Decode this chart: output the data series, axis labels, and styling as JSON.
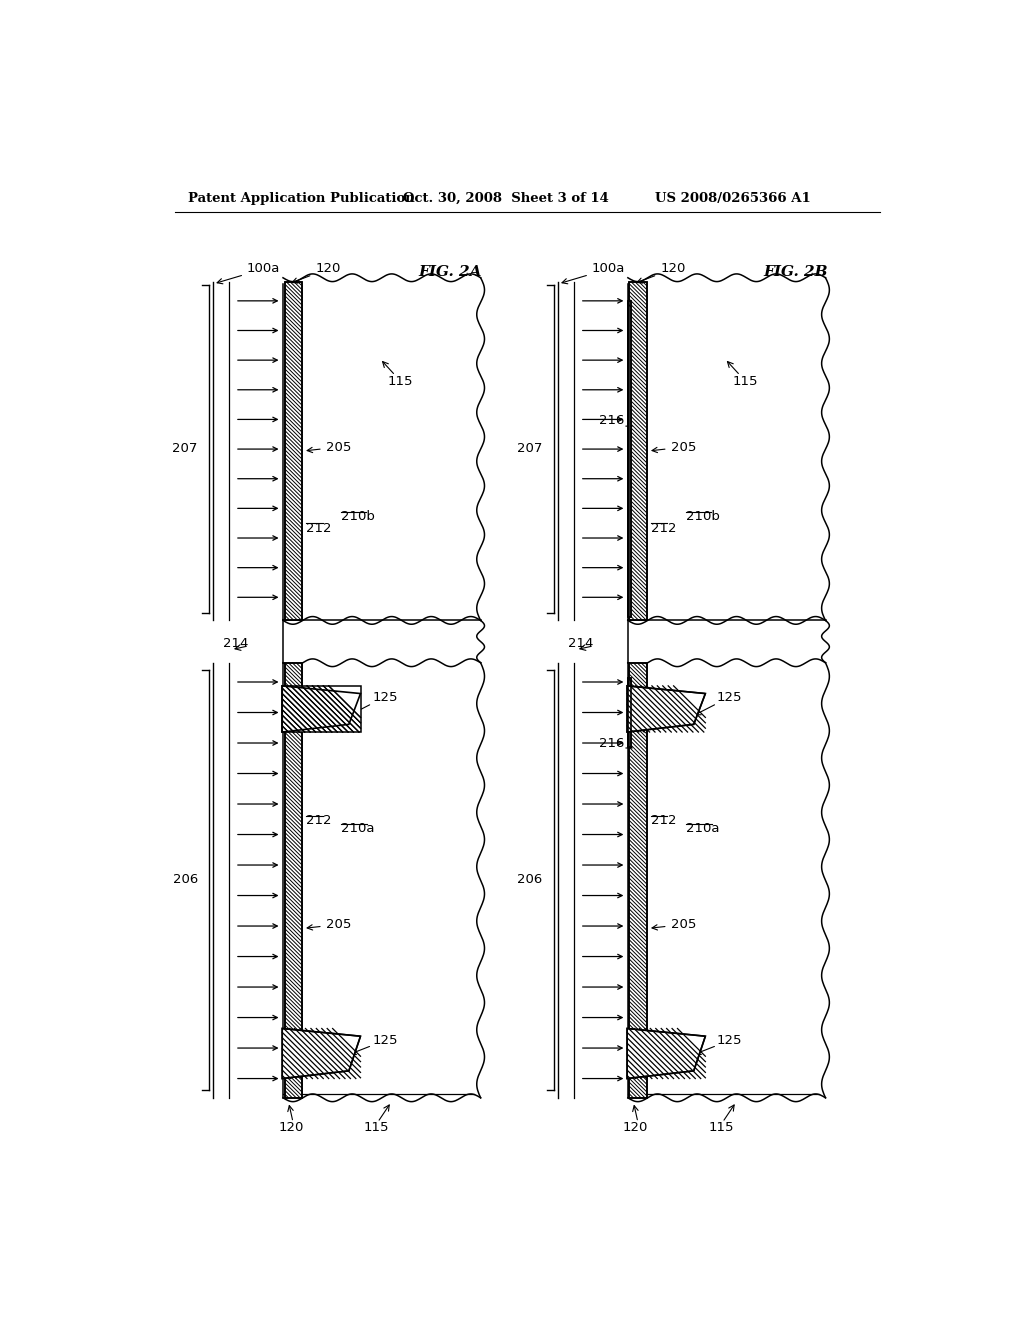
{
  "header_left": "Patent Application Publication",
  "header_center": "Oct. 30, 2008  Sheet 3 of 14",
  "header_right": "US 2008/0265366 A1",
  "fig_a_label": "FIG. 2A",
  "fig_b_label": "FIG. 2B",
  "bg_color": "#ffffff",
  "line_color": "#000000"
}
